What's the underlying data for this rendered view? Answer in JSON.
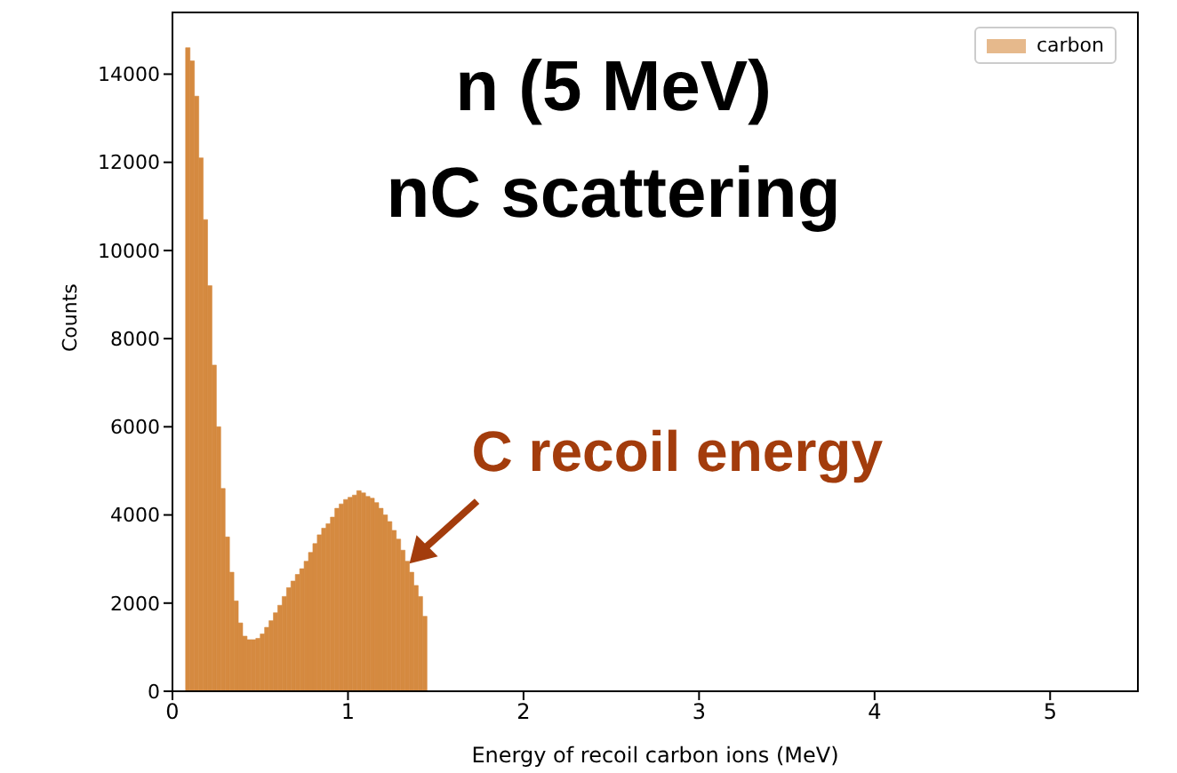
{
  "chart_data": {
    "type": "histogram",
    "annotations": [
      "n (5 MeV)",
      "nC scattering",
      {
        "text": "C recoil energy",
        "x": 1.35,
        "y": 2900
      }
    ],
    "xlabel": "Energy of recoil carbon ions (MeV)",
    "ylabel": "Counts",
    "bins": [
      0.075,
      0.1,
      0.125,
      0.15,
      0.175,
      0.2,
      0.225,
      0.25,
      0.275,
      0.3,
      0.325,
      0.35,
      0.375,
      0.4,
      0.425,
      0.45,
      0.475,
      0.5,
      0.525,
      0.55,
      0.575,
      0.6,
      0.625,
      0.65,
      0.675,
      0.7,
      0.725,
      0.75,
      0.775,
      0.8,
      0.825,
      0.85,
      0.875,
      0.9,
      0.925,
      0.95,
      0.975,
      1.0,
      1.025,
      1.05,
      1.075,
      1.1,
      1.125,
      1.15,
      1.175,
      1.2,
      1.225,
      1.25,
      1.275,
      1.3,
      1.325,
      1.35,
      1.375,
      1.4,
      1.425,
      1.45
    ],
    "series": [
      {
        "name": "carbon",
        "color": "#d58a40",
        "values": [
          14600,
          14300,
          13500,
          12100,
          10700,
          9200,
          7400,
          6000,
          4600,
          3500,
          2700,
          2050,
          1550,
          1250,
          1170,
          1170,
          1200,
          1300,
          1450,
          1600,
          1780,
          1950,
          2150,
          2350,
          2500,
          2650,
          2780,
          2950,
          3150,
          3350,
          3550,
          3700,
          3800,
          3950,
          4150,
          4250,
          4350,
          4400,
          4450,
          4550,
          4500,
          4420,
          4380,
          4280,
          4150,
          4000,
          3850,
          3650,
          3450,
          3200,
          2950,
          2700,
          2400,
          2150,
          1700
        ]
      }
    ],
    "xlim": [
      0,
      5.5
    ],
    "xticks": [
      0,
      1,
      2,
      3,
      4,
      5
    ],
    "ylim": [
      0,
      15400
    ],
    "yticks": [
      0,
      2000,
      4000,
      6000,
      8000,
      10000,
      12000,
      14000
    ],
    "legend": "top right",
    "grid": false
  }
}
